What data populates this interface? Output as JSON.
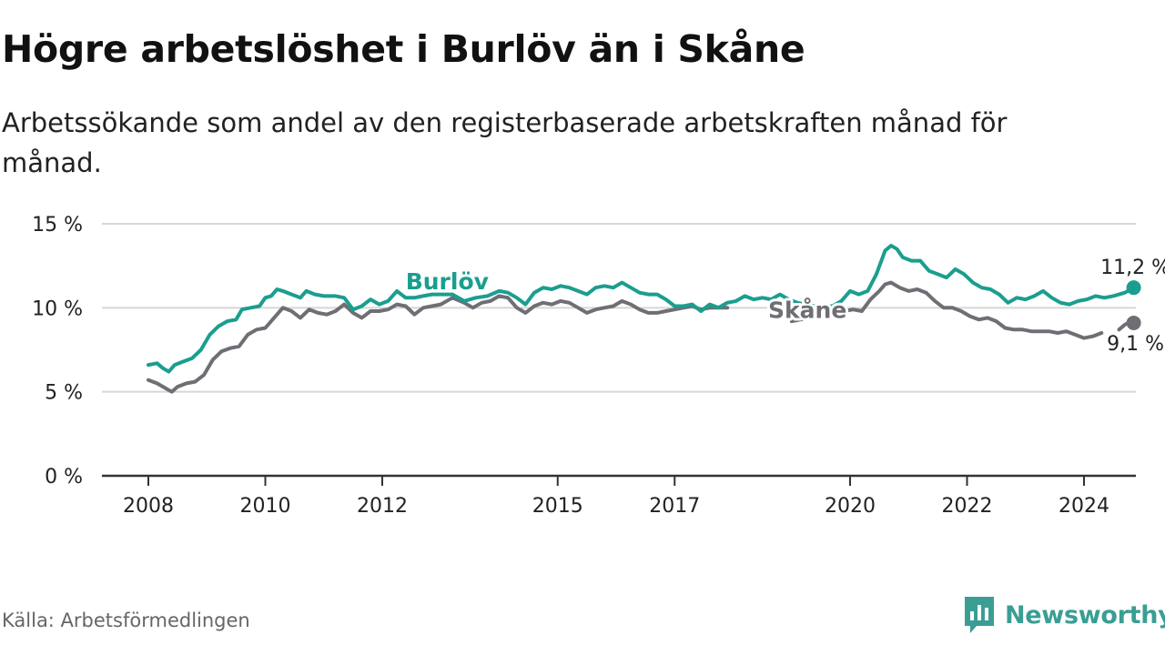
{
  "header": {
    "title": "Högre arbetslöshet i Burlöv än i Skåne",
    "subtitle": "Arbetssökande som andel av den registerbaserade arbetskraften månad för månad."
  },
  "footer": {
    "source": "Källa: Arbetsförmedlingen",
    "brand": "Newsworthy"
  },
  "colors": {
    "burlov": "#1a9e8f",
    "skane": "#6e6e74",
    "grid": "#d6d6d6",
    "axis": "#333333",
    "brand": "#3a9e94"
  },
  "chart_data": {
    "type": "line",
    "title": "Högre arbetslöshet i Burlöv än i Skåne",
    "xlabel": "",
    "ylabel": "",
    "ylim": [
      0,
      15
    ],
    "xlim": [
      2007.5,
      2025.0
    ],
    "grid": true,
    "yticks": [
      0,
      5,
      10,
      15
    ],
    "ytick_labels": [
      "0 %",
      "5 %",
      "10 %",
      "15 %"
    ],
    "xticks": [
      {
        "value": 2008.0,
        "label": "2008"
      },
      {
        "value": 2010.0,
        "label": "2010"
      },
      {
        "value": 2012.0,
        "label": "2012"
      },
      {
        "value": 2015.0,
        "label": "2015"
      },
      {
        "value": 2017.0,
        "label": "2017"
      },
      {
        "value": 2020.0,
        "label": "2020"
      },
      {
        "value": 2022.0,
        "label": "2022"
      },
      {
        "value": 2024.0,
        "label": "2024"
      }
    ],
    "series": [
      {
        "name": "Burlöv",
        "color": "#1a9e8f",
        "end_label": "11,2 %",
        "points": [
          [
            2008.0,
            6.6
          ],
          [
            2008.15,
            6.7
          ],
          [
            2008.25,
            6.4
          ],
          [
            2008.35,
            6.2
          ],
          [
            2008.45,
            6.6
          ],
          [
            2008.6,
            6.8
          ],
          [
            2008.75,
            7.0
          ],
          [
            2008.9,
            7.5
          ],
          [
            2009.05,
            8.4
          ],
          [
            2009.2,
            8.9
          ],
          [
            2009.35,
            9.2
          ],
          [
            2009.5,
            9.3
          ],
          [
            2009.6,
            9.9
          ],
          [
            2009.75,
            10.0
          ],
          [
            2009.9,
            10.1
          ],
          [
            2010.0,
            10.6
          ],
          [
            2010.1,
            10.7
          ],
          [
            2010.2,
            11.1
          ],
          [
            2010.3,
            11.0
          ],
          [
            2010.45,
            10.8
          ],
          [
            2010.6,
            10.6
          ],
          [
            2010.7,
            11.0
          ],
          [
            2010.85,
            10.8
          ],
          [
            2011.0,
            10.7
          ],
          [
            2011.2,
            10.7
          ],
          [
            2011.35,
            10.6
          ],
          [
            2011.5,
            9.9
          ],
          [
            2011.65,
            10.1
          ],
          [
            2011.8,
            10.5
          ],
          [
            2011.95,
            10.2
          ],
          [
            2012.1,
            10.4
          ],
          [
            2012.25,
            11.0
          ],
          [
            2012.4,
            10.6
          ],
          [
            2012.55,
            10.6
          ],
          [
            2012.7,
            10.7
          ],
          [
            2012.85,
            10.8
          ],
          [
            2013.0,
            10.8
          ],
          [
            2013.2,
            10.8
          ],
          [
            2013.4,
            10.4
          ],
          [
            2013.6,
            10.6
          ],
          [
            2013.8,
            10.7
          ],
          [
            2014.0,
            11.0
          ],
          [
            2014.15,
            10.9
          ],
          [
            2014.3,
            10.6
          ],
          [
            2014.45,
            10.2
          ],
          [
            2014.6,
            10.9
          ],
          [
            2014.75,
            11.2
          ],
          [
            2014.9,
            11.1
          ],
          [
            2015.05,
            11.3
          ],
          [
            2015.2,
            11.2
          ],
          [
            2015.35,
            11.0
          ],
          [
            2015.5,
            10.8
          ],
          [
            2015.65,
            11.2
          ],
          [
            2015.8,
            11.3
          ],
          [
            2015.95,
            11.2
          ],
          [
            2016.1,
            11.5
          ],
          [
            2016.25,
            11.2
          ],
          [
            2016.4,
            10.9
          ],
          [
            2016.55,
            10.8
          ],
          [
            2016.7,
            10.8
          ],
          [
            2016.85,
            10.5
          ],
          [
            2017.0,
            10.1
          ],
          [
            2017.15,
            10.1
          ],
          [
            2017.3,
            10.2
          ],
          [
            2017.45,
            9.8
          ],
          [
            2017.6,
            10.2
          ],
          [
            2017.75,
            10.0
          ],
          [
            2017.9,
            10.3
          ],
          [
            2018.05,
            10.4
          ],
          [
            2018.2,
            10.7
          ],
          [
            2018.35,
            10.5
          ],
          [
            2018.5,
            10.6
          ],
          [
            2018.65,
            10.5
          ],
          [
            2018.8,
            10.8
          ],
          [
            2018.95,
            10.5
          ],
          [
            2019.1,
            10.3
          ],
          [
            2019.25,
            10.2
          ],
          [
            2019.4,
            10.1
          ],
          [
            2019.55,
            10.1
          ],
          [
            2019.7,
            10.1
          ],
          [
            2019.85,
            10.4
          ],
          [
            2020.0,
            11.0
          ],
          [
            2020.15,
            10.8
          ],
          [
            2020.3,
            11.0
          ],
          [
            2020.45,
            12.0
          ],
          [
            2020.6,
            13.4
          ],
          [
            2020.7,
            13.7
          ],
          [
            2020.8,
            13.5
          ],
          [
            2020.9,
            13.0
          ],
          [
            2021.05,
            12.8
          ],
          [
            2021.2,
            12.8
          ],
          [
            2021.35,
            12.2
          ],
          [
            2021.5,
            12.0
          ],
          [
            2021.65,
            11.8
          ],
          [
            2021.8,
            12.3
          ],
          [
            2021.95,
            12.0
          ],
          [
            2022.1,
            11.5
          ],
          [
            2022.25,
            11.2
          ],
          [
            2022.4,
            11.1
          ],
          [
            2022.55,
            10.8
          ],
          [
            2022.7,
            10.3
          ],
          [
            2022.85,
            10.6
          ],
          [
            2023.0,
            10.5
          ],
          [
            2023.15,
            10.7
          ],
          [
            2023.3,
            11.0
          ],
          [
            2023.45,
            10.6
          ],
          [
            2023.6,
            10.3
          ],
          [
            2023.75,
            10.2
          ],
          [
            2023.9,
            10.4
          ],
          [
            2024.05,
            10.5
          ],
          [
            2024.2,
            10.7
          ],
          [
            2024.35,
            10.6
          ],
          [
            2024.5,
            10.7
          ],
          [
            2024.6,
            10.8
          ],
          [
            2024.7,
            10.9
          ],
          [
            2024.8,
            11.1
          ],
          [
            2024.85,
            11.2
          ]
        ]
      },
      {
        "name": "Skåne",
        "color": "#6e6e74",
        "end_label": "9,1 %",
        "points": [
          [
            2008.0,
            5.7
          ],
          [
            2008.15,
            5.5
          ],
          [
            2008.3,
            5.2
          ],
          [
            2008.4,
            5.0
          ],
          [
            2008.5,
            5.3
          ],
          [
            2008.65,
            5.5
          ],
          [
            2008.8,
            5.6
          ],
          [
            2008.95,
            6.0
          ],
          [
            2009.1,
            6.9
          ],
          [
            2009.25,
            7.4
          ],
          [
            2009.4,
            7.6
          ],
          [
            2009.55,
            7.7
          ],
          [
            2009.7,
            8.4
          ],
          [
            2009.85,
            8.7
          ],
          [
            2010.0,
            8.8
          ],
          [
            2010.15,
            9.4
          ],
          [
            2010.3,
            10.0
          ],
          [
            2010.45,
            9.8
          ],
          [
            2010.6,
            9.4
          ],
          [
            2010.75,
            9.9
          ],
          [
            2010.9,
            9.7
          ],
          [
            2011.05,
            9.6
          ],
          [
            2011.2,
            9.8
          ],
          [
            2011.35,
            10.2
          ],
          [
            2011.5,
            9.7
          ],
          [
            2011.65,
            9.4
          ],
          [
            2011.8,
            9.8
          ],
          [
            2011.95,
            9.8
          ],
          [
            2012.1,
            9.9
          ],
          [
            2012.25,
            10.2
          ],
          [
            2012.4,
            10.1
          ],
          [
            2012.55,
            9.6
          ],
          [
            2012.7,
            10.0
          ],
          [
            2012.85,
            10.1
          ],
          [
            2013.0,
            10.2
          ],
          [
            2013.2,
            10.6
          ],
          [
            2013.4,
            10.3
          ],
          [
            2013.55,
            10.0
          ],
          [
            2013.7,
            10.3
          ],
          [
            2013.85,
            10.4
          ],
          [
            2014.0,
            10.7
          ],
          [
            2014.15,
            10.6
          ],
          [
            2014.3,
            10.0
          ],
          [
            2014.45,
            9.7
          ],
          [
            2014.6,
            10.1
          ],
          [
            2014.75,
            10.3
          ],
          [
            2014.9,
            10.2
          ],
          [
            2015.05,
            10.4
          ],
          [
            2015.2,
            10.3
          ],
          [
            2015.35,
            10.0
          ],
          [
            2015.5,
            9.7
          ],
          [
            2015.65,
            9.9
          ],
          [
            2015.8,
            10.0
          ],
          [
            2015.95,
            10.1
          ],
          [
            2016.1,
            10.4
          ],
          [
            2016.25,
            10.2
          ],
          [
            2016.4,
            9.9
          ],
          [
            2016.55,
            9.7
          ],
          [
            2016.7,
            9.7
          ],
          [
            2016.85,
            9.8
          ],
          [
            2017.0,
            9.9
          ],
          [
            2017.15,
            10.0
          ],
          [
            2017.3,
            10.1
          ],
          [
            2017.45,
            9.9
          ],
          [
            2017.6,
            10.0
          ],
          [
            2017.75,
            10.0
          ],
          [
            2017.9,
            10.0
          ],
          null,
          [
            2019.0,
            9.2
          ],
          [
            2019.15,
            9.3
          ],
          [
            2019.3,
            9.4
          ],
          [
            2019.45,
            9.5
          ],
          [
            2019.6,
            9.7
          ],
          [
            2019.75,
            9.8
          ],
          [
            2019.9,
            9.8
          ],
          [
            2020.05,
            9.9
          ],
          [
            2020.2,
            9.8
          ],
          [
            2020.35,
            10.5
          ],
          [
            2020.5,
            11.0
          ],
          [
            2020.6,
            11.4
          ],
          [
            2020.7,
            11.5
          ],
          [
            2020.85,
            11.2
          ],
          [
            2021.0,
            11.0
          ],
          [
            2021.15,
            11.1
          ],
          [
            2021.3,
            10.9
          ],
          [
            2021.45,
            10.4
          ],
          [
            2021.6,
            10.0
          ],
          [
            2021.75,
            10.0
          ],
          [
            2021.9,
            9.8
          ],
          [
            2022.05,
            9.5
          ],
          [
            2022.2,
            9.3
          ],
          [
            2022.35,
            9.4
          ],
          [
            2022.5,
            9.2
          ],
          [
            2022.65,
            8.8
          ],
          [
            2022.8,
            8.7
          ],
          [
            2022.95,
            8.7
          ],
          [
            2023.1,
            8.6
          ],
          [
            2023.25,
            8.6
          ],
          [
            2023.4,
            8.6
          ],
          [
            2023.55,
            8.5
          ],
          [
            2023.7,
            8.6
          ],
          [
            2023.85,
            8.4
          ],
          [
            2024.0,
            8.2
          ],
          [
            2024.15,
            8.3
          ],
          [
            2024.3,
            8.5
          ],
          null,
          [
            2024.6,
            8.7
          ],
          [
            2024.7,
            9.0
          ],
          [
            2024.8,
            9.2
          ],
          [
            2024.85,
            9.1
          ]
        ]
      }
    ],
    "annotations": [
      {
        "text": "Burlöv",
        "series": "Burlöv",
        "x": 2012.4,
        "y": 11.1
      },
      {
        "text": "Skåne",
        "series": "Skåne",
        "x": 2018.6,
        "y": 9.4
      }
    ]
  }
}
